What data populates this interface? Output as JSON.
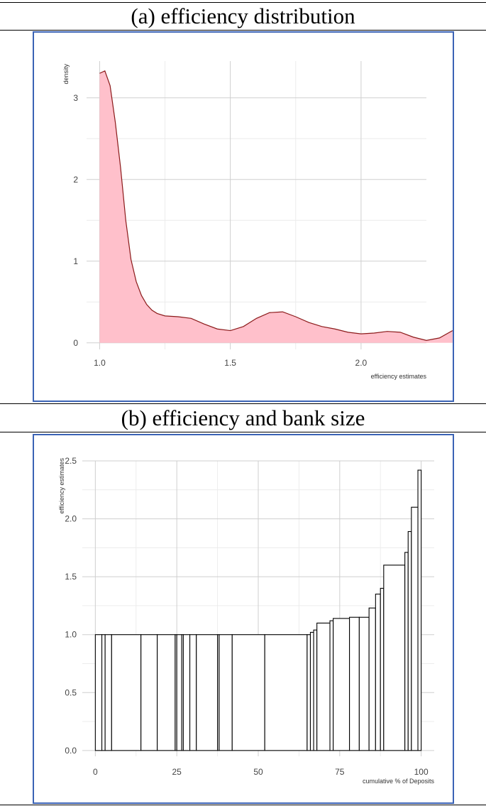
{
  "headings": {
    "a": "(a) efficiency distribution",
    "b": "(b) efficiency and bank size"
  },
  "colors": {
    "frame": "#3b63b5",
    "density_fill": "#ffc0cb",
    "density_line": "#8b1a1a",
    "bar_stroke": "#000000"
  },
  "chart_data": [
    {
      "type": "area",
      "title": "(a) efficiency distribution",
      "xlabel": "efficiency estimates",
      "ylabel": "density",
      "xlim": [
        0.95,
        2.25
      ],
      "ylim": [
        -0.08,
        3.45
      ],
      "xticks": [
        1.0,
        1.5,
        2.0
      ],
      "xtick_labels": [
        "1.0",
        "1.5",
        "2.0"
      ],
      "yticks": [
        0,
        1,
        2,
        3
      ],
      "ytick_labels": [
        "0",
        "1",
        "2",
        "3"
      ],
      "grid": true,
      "x": [
        1.0,
        1.02,
        1.04,
        1.06,
        1.08,
        1.1,
        1.12,
        1.14,
        1.16,
        1.18,
        1.2,
        1.22,
        1.25,
        1.3,
        1.35,
        1.4,
        1.45,
        1.5,
        1.55,
        1.6,
        1.65,
        1.7,
        1.75,
        1.8,
        1.85,
        1.9,
        1.95,
        2.0,
        2.05,
        2.1,
        2.15,
        2.2,
        2.25,
        2.3,
        2.35
      ],
      "y": [
        3.3,
        3.33,
        3.15,
        2.7,
        2.15,
        1.5,
        1.02,
        0.75,
        0.58,
        0.47,
        0.4,
        0.36,
        0.33,
        0.32,
        0.3,
        0.23,
        0.17,
        0.15,
        0.2,
        0.3,
        0.37,
        0.38,
        0.32,
        0.25,
        0.2,
        0.17,
        0.13,
        0.11,
        0.12,
        0.14,
        0.13,
        0.07,
        0.03,
        0.06,
        0.15
      ]
    },
    {
      "type": "bar",
      "title": "(b) efficiency and bank size",
      "xlabel": "cumulative % of Deposits",
      "ylabel": "efficiency estimates",
      "xlim": [
        -4,
        104
      ],
      "ylim": [
        -0.05,
        2.5
      ],
      "xticks": [
        0,
        25,
        50,
        75,
        100
      ],
      "xtick_labels": [
        "0",
        "25",
        "50",
        "75",
        "100"
      ],
      "yticks": [
        0.0,
        0.5,
        1.0,
        1.5,
        2.0,
        2.5
      ],
      "ytick_labels": [
        "0.0",
        "0.5",
        "1.0",
        "1.5",
        "2.0",
        "2.5"
      ],
      "grid": true,
      "bar_edges": [
        0,
        2,
        3,
        5,
        14,
        19,
        24.5,
        25,
        26.5,
        27,
        29,
        31,
        37.5,
        38,
        42,
        52,
        65,
        66,
        67,
        68,
        72,
        73,
        78,
        81,
        84,
        86,
        87.5,
        88.5,
        95,
        96,
        97,
        99,
        100
      ],
      "values": [
        1.0,
        1.0,
        1.0,
        1.0,
        1.0,
        1.0,
        1.0,
        1.0,
        1.0,
        1.0,
        1.0,
        1.0,
        1.0,
        1.0,
        1.0,
        1.0,
        1.0,
        1.02,
        1.04,
        1.1,
        1.12,
        1.14,
        1.15,
        1.15,
        1.23,
        1.35,
        1.4,
        1.6,
        1.71,
        1.89,
        2.1,
        2.42
      ]
    }
  ]
}
